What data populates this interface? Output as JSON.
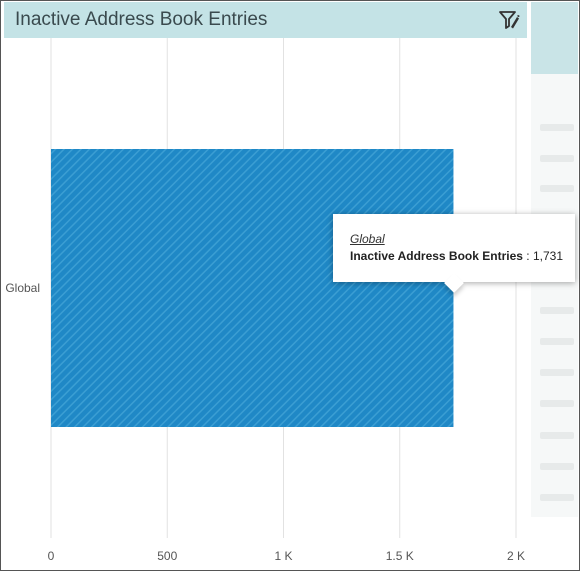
{
  "panel": {
    "title": "Inactive Address Book Entries"
  },
  "icons": {
    "filter": "filter-settings-icon"
  },
  "colors": {
    "header_bg": "#c4e3e6",
    "bar_fill": "#1f88c6",
    "bar_stripe": "#3b9ed3",
    "grid": "#e2e2e2"
  },
  "chart_data": {
    "type": "bar",
    "orientation": "horizontal",
    "categories": [
      "Global"
    ],
    "series": [
      {
        "name": "Inactive Address Book Entries",
        "values": [
          1731
        ]
      }
    ],
    "xlim": [
      0,
      2000
    ],
    "xticks": [
      0,
      500,
      1000,
      1500,
      2000
    ],
    "xtick_labels": [
      "0",
      "500",
      "1 K",
      "1.5 K",
      "2 K"
    ],
    "grid": true,
    "legend": "none"
  },
  "tooltip": {
    "category": "Global",
    "series_label": "Inactive Address Book Entries",
    "separator": " : ",
    "value_text": "1,731"
  }
}
